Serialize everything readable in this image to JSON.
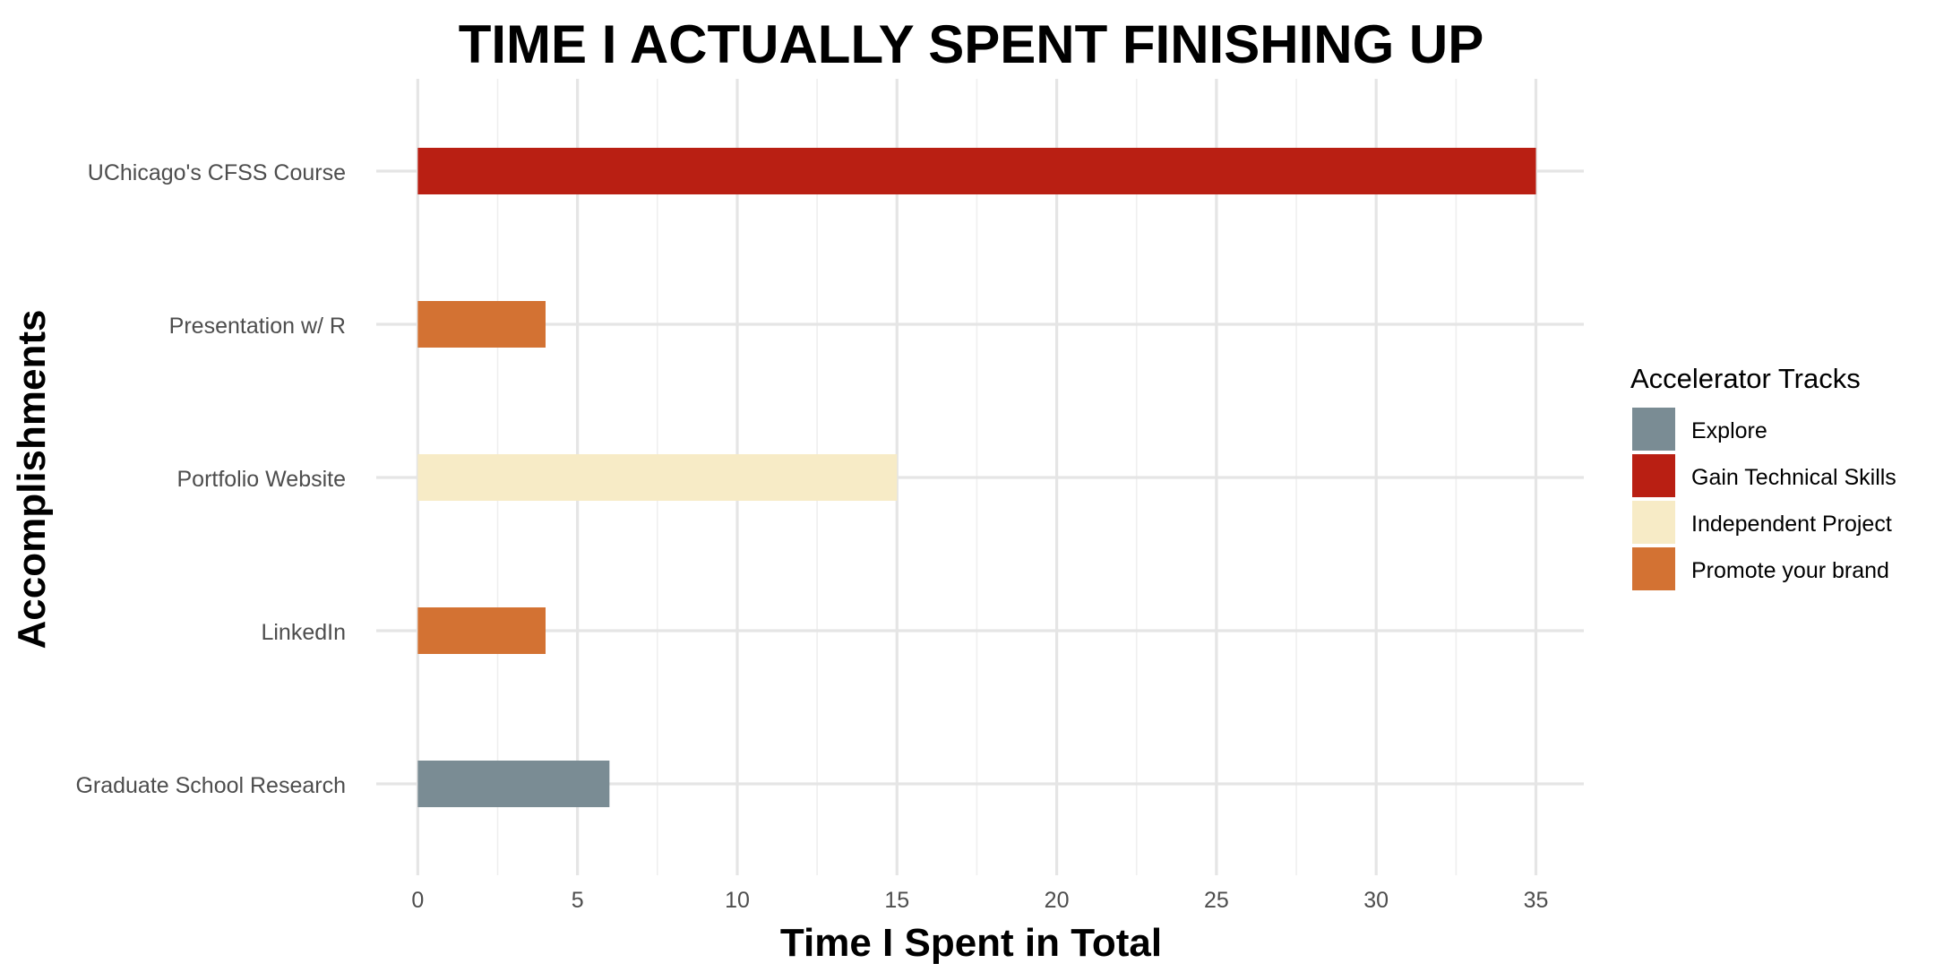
{
  "chart_data": {
    "type": "bar",
    "orientation": "horizontal",
    "title": "TIME I ACTUALLY SPENT FINISHING UP",
    "xlabel": "Time I Spent in Total",
    "ylabel": "Accomplishments",
    "xlim": [
      -1.3,
      36.5
    ],
    "xticks": [
      0,
      5,
      10,
      15,
      20,
      25,
      30,
      35
    ],
    "grid": true,
    "categories": [
      "UChicago's CFSS Course",
      "Presentation w/ R",
      "Portfolio Website",
      "LinkedIn",
      "Graduate School Research"
    ],
    "values": [
      35,
      4,
      15,
      4,
      6
    ],
    "groups": [
      "Gain Technical Skills",
      "Promote your brand",
      "Independent Project",
      "Promote your brand",
      "Explore"
    ],
    "legend": {
      "title": "Accelerator Tracks",
      "position": "right",
      "entries": [
        {
          "name": "Explore",
          "color": "#7a8c94"
        },
        {
          "name": "Gain Technical Skills",
          "color": "#b91f13"
        },
        {
          "name": "Independent Project",
          "color": "#f7ebc6"
        },
        {
          "name": "Promote your brand",
          "color": "#d37233"
        }
      ]
    }
  }
}
